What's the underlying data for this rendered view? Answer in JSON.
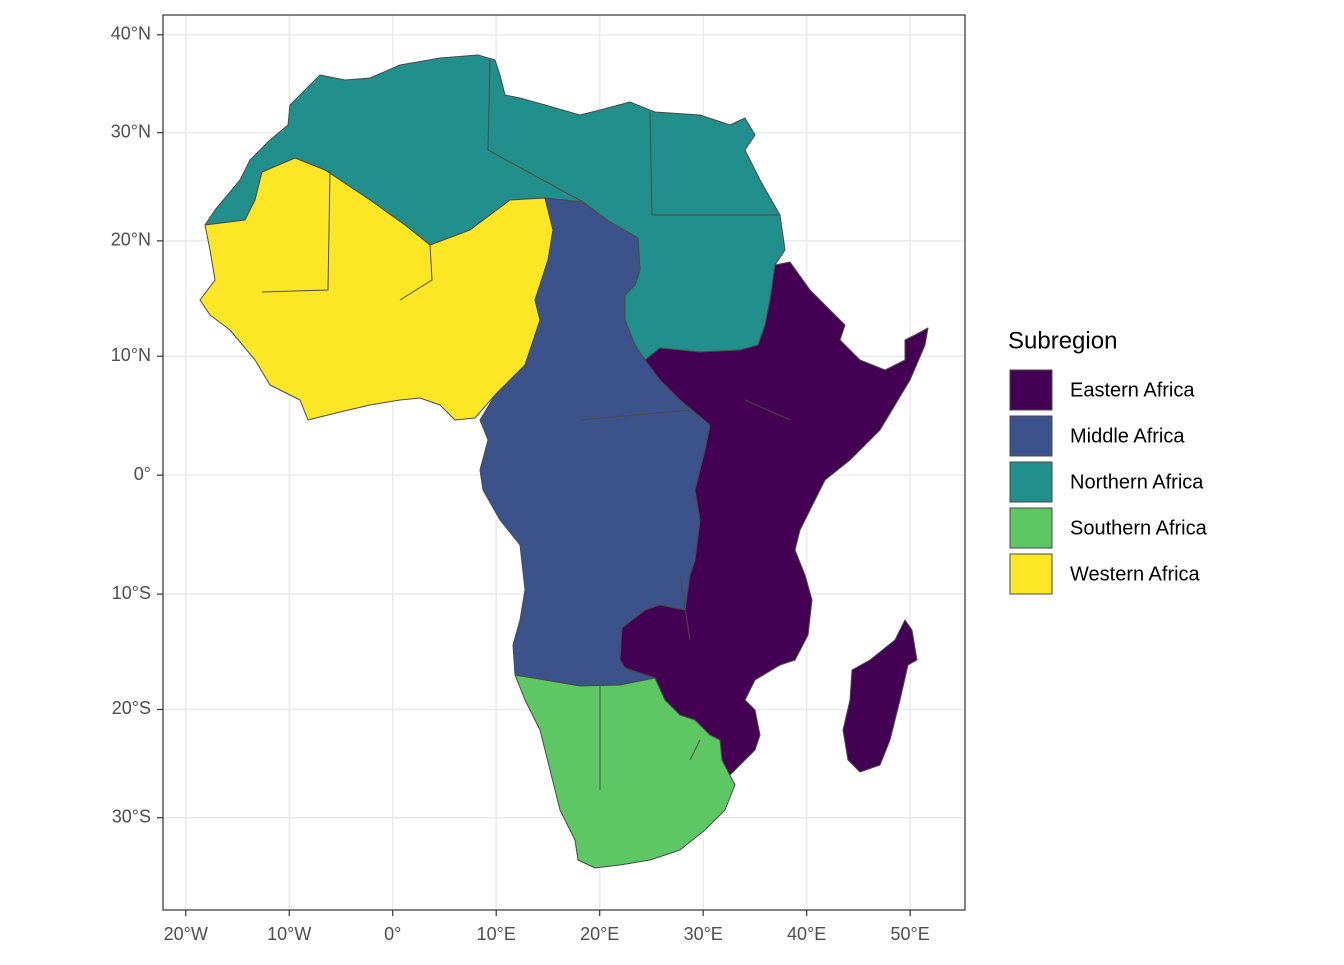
{
  "chart_data": {
    "type": "map",
    "xlim": [
      -22.2,
      55.3
    ],
    "ylim": [
      -39.4,
      42.2
    ],
    "xticks": [
      {
        "value": -20,
        "label": "20°W"
      },
      {
        "value": -10,
        "label": "10°W"
      },
      {
        "value": 0,
        "label": "0°"
      },
      {
        "value": 10,
        "label": "10°E"
      },
      {
        "value": 20,
        "label": "20°E"
      },
      {
        "value": 30,
        "label": "30°E"
      },
      {
        "value": 40,
        "label": "40°E"
      },
      {
        "value": 50,
        "label": "50°E"
      }
    ],
    "yticks": [
      {
        "value": 40,
        "label": "40°N"
      },
      {
        "value": 30,
        "label": "30°N"
      },
      {
        "value": 20,
        "label": "20°N"
      },
      {
        "value": 10,
        "label": "10°N"
      },
      {
        "value": 0,
        "label": "0°"
      },
      {
        "value": -10,
        "label": "10°S"
      },
      {
        "value": -20,
        "label": "20°S"
      },
      {
        "value": -30,
        "label": "30°S"
      }
    ],
    "grid": true,
    "legend_title": "Subregion",
    "series": [
      {
        "name": "Eastern Africa",
        "color": "#440154"
      },
      {
        "name": "Middle Africa",
        "color": "#3B528B"
      },
      {
        "name": "Northern Africa",
        "color": "#21908C"
      },
      {
        "name": "Southern Africa",
        "color": "#5DC863"
      },
      {
        "name": "Western Africa",
        "color": "#FDE725"
      }
    ]
  }
}
